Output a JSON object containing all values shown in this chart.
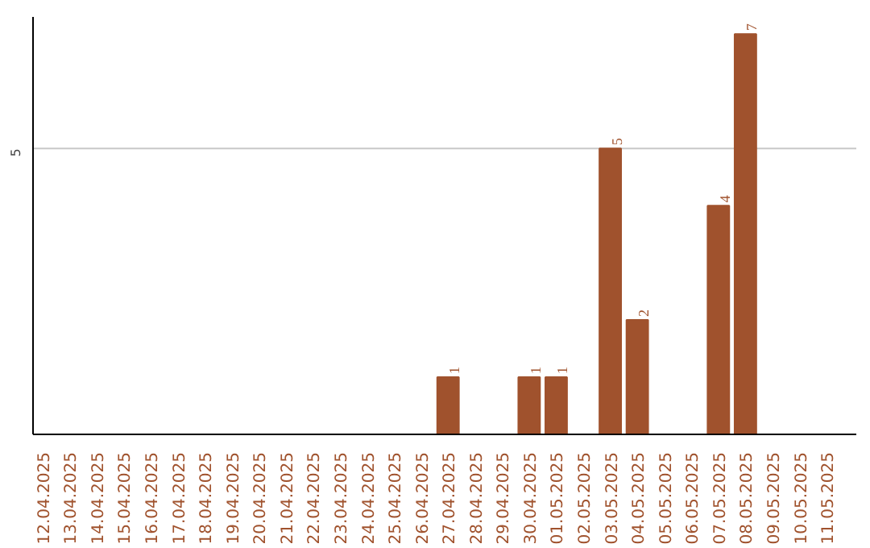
{
  "chart_data": {
    "type": "bar",
    "categories": [
      "12.04.2025",
      "13.04.2025",
      "14.04.2025",
      "15.04.2025",
      "16.04.2025",
      "17.04.2025",
      "18.04.2025",
      "19.04.2025",
      "20.04.2025",
      "21.04.2025",
      "22.04.2025",
      "23.04.2025",
      "24.04.2025",
      "25.04.2025",
      "26.04.2025",
      "27.04.2025",
      "28.04.2025",
      "29.04.2025",
      "30.04.2025",
      "01.05.2025",
      "02.05.2025",
      "03.05.2025",
      "04.05.2025",
      "05.05.2025",
      "06.05.2025",
      "07.05.2025",
      "08.05.2025",
      "09.05.2025",
      "10.05.2025",
      "11.05.2025"
    ],
    "values": [
      null,
      null,
      null,
      null,
      null,
      null,
      null,
      null,
      null,
      null,
      null,
      null,
      null,
      null,
      null,
      1,
      null,
      null,
      1,
      1,
      null,
      5,
      2,
      null,
      null,
      4,
      7,
      null,
      null,
      null
    ],
    "data_labels": true,
    "color": "#a0522d",
    "ylim": [
      0,
      7.3
    ],
    "ref_lines": [
      {
        "axis": "y",
        "value": 5,
        "label": "5",
        "color": "#c8c8c8"
      }
    ]
  }
}
